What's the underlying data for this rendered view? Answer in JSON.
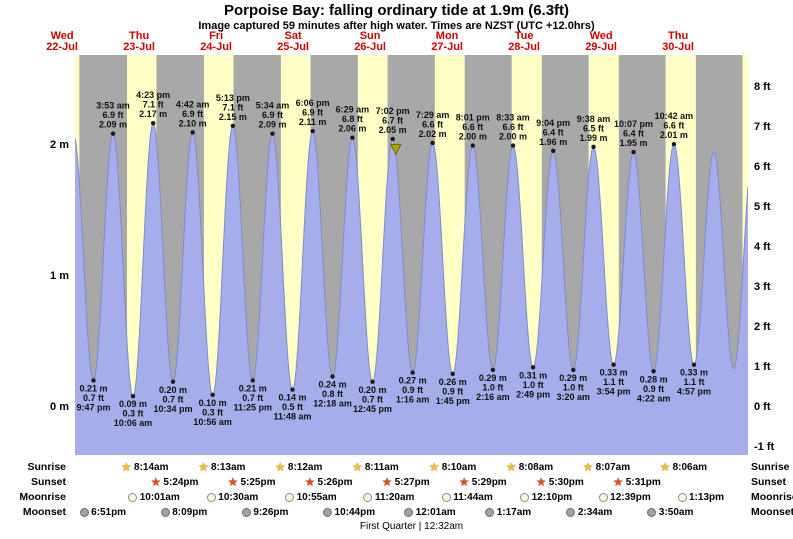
{
  "header": {
    "title": "Porpoise Bay: falling ordinary tide at 1.9m (6.3ft)",
    "subtitle": "Image captured 59 minutes after high water. Times are NZST (UTC +12.0hrs)"
  },
  "colors": {
    "night_bg": "#a8a8a8",
    "day_band": "#ffffc6",
    "tide_fill": "#a5aeea",
    "tide_edge": "#7f8ad0",
    "day_label": "#cc0000",
    "marker_fill": "#b0a000",
    "marker_edge": "#706400",
    "sunrise_star": "#f0c030",
    "sunset_star": "#dd4f1e",
    "moonrise_fill": "#fffbdc",
    "moonrise_edge": "#8a8a8a",
    "moonset_fill": "#a2a2a2",
    "moonset_edge": "#6e6e6e"
  },
  "chart_data": {
    "type": "area",
    "title": "Porpoise Bay: falling ordinary tide at 1.9m (6.3ft)",
    "subtitle": "Image captured 59 minutes after high water. Times are NZST (UTC +12.0hrs)",
    "timezone": "NZST (UTC +12.0hrs)",
    "days": [
      {
        "weekday": "Wed",
        "date": "22-Jul"
      },
      {
        "weekday": "Thu",
        "date": "23-Jul"
      },
      {
        "weekday": "Fri",
        "date": "24-Jul"
      },
      {
        "weekday": "Sat",
        "date": "25-Jul"
      },
      {
        "weekday": "Sun",
        "date": "26-Jul"
      },
      {
        "weekday": "Mon",
        "date": "27-Jul"
      },
      {
        "weekday": "Tue",
        "date": "28-Jul"
      },
      {
        "weekday": "Wed",
        "date": "29-Jul"
      },
      {
        "weekday": "Thu",
        "date": "30-Jul"
      }
    ],
    "y_axis": {
      "left_ticks": [
        {
          "label": "2 m",
          "m": 2
        },
        {
          "label": "1 m",
          "m": 1
        },
        {
          "label": "0 m",
          "m": 0
        }
      ],
      "right_ticks": [
        {
          "label": "8 ft",
          "ft": 8
        },
        {
          "label": "7 ft",
          "ft": 7
        },
        {
          "label": "6 ft",
          "ft": 6
        },
        {
          "label": "5 ft",
          "ft": 5
        },
        {
          "label": "4 ft",
          "ft": 4
        },
        {
          "label": "3 ft",
          "ft": 3
        },
        {
          "label": "2 ft",
          "ft": 2
        },
        {
          "label": "1 ft",
          "ft": 1
        },
        {
          "label": "0 ft",
          "ft": 0
        },
        {
          "label": "-1 ft",
          "ft": -1
        }
      ]
    },
    "tide_events": [
      {
        "t": 0.9076,
        "m": 0.21,
        "type": "low",
        "lines": [
          "0.21 m",
          "0.7 ft",
          "9:47 pm"
        ]
      },
      {
        "t": 1.1618,
        "m": 2.09,
        "type": "high",
        "lines": [
          "3:53 am",
          "6.9 ft",
          "2.09 m"
        ]
      },
      {
        "t": 1.4208,
        "m": 0.09,
        "type": "low",
        "lines": [
          "0.09 m",
          "0.3 ft",
          "10:06 am"
        ]
      },
      {
        "t": 1.6826,
        "m": 2.17,
        "type": "high",
        "lines": [
          "4:23 pm",
          "7.1 ft",
          "2.17 m"
        ]
      },
      {
        "t": 1.9403,
        "m": 0.2,
        "type": "low",
        "lines": [
          "0.20 m",
          "0.7 ft",
          "10:34 pm"
        ]
      },
      {
        "t": 2.1958,
        "m": 2.1,
        "type": "high",
        "lines": [
          "4:42 am",
          "6.9 ft",
          "2.10 m"
        ]
      },
      {
        "t": 2.4556,
        "m": 0.1,
        "type": "low",
        "lines": [
          "0.10 m",
          "0.3 ft",
          "10:56 am"
        ]
      },
      {
        "t": 2.7174,
        "m": 2.15,
        "type": "high",
        "lines": [
          "5:13 pm",
          "7.1 ft",
          "2.15 m"
        ]
      },
      {
        "t": 2.9757,
        "m": 0.21,
        "type": "low",
        "lines": [
          "0.21 m",
          "0.7 ft",
          "11:25 pm"
        ]
      },
      {
        "t": 3.2319,
        "m": 2.09,
        "type": "high",
        "lines": [
          "5:34 am",
          "6.9 ft",
          "2.09 m"
        ]
      },
      {
        "t": 3.4917,
        "m": 0.14,
        "type": "low",
        "lines": [
          "0.14 m",
          "0.5 ft",
          "11:48 am"
        ]
      },
      {
        "t": 3.7542,
        "m": 2.11,
        "type": "high",
        "lines": [
          "6:06 pm",
          "6.9 ft",
          "2.11 m"
        ]
      },
      {
        "t": 4.0125,
        "m": 0.24,
        "type": "low",
        "lines": [
          "0.24 m",
          "0.8 ft",
          "12:18 am"
        ]
      },
      {
        "t": 4.2701,
        "m": 2.06,
        "type": "high",
        "lines": [
          "6:29 am",
          "6.8 ft",
          "2.06 m"
        ]
      },
      {
        "t": 4.5313,
        "m": 0.2,
        "type": "low",
        "lines": [
          "0.20 m",
          "0.7 ft",
          "12:45 pm"
        ]
      },
      {
        "t": 4.7931,
        "m": 2.05,
        "type": "high",
        "lines": [
          "7:02 pm",
          "6.7 ft",
          "2.05 m"
        ]
      },
      {
        "t": 5.0528,
        "m": 0.27,
        "type": "low",
        "lines": [
          "0.27 m",
          "0.9 ft",
          "1:16 am"
        ]
      },
      {
        "t": 5.3118,
        "m": 2.02,
        "type": "high",
        "lines": [
          "7:29 am",
          "6.6 ft",
          "2.02 m"
        ]
      },
      {
        "t": 5.5729,
        "m": 0.26,
        "type": "low",
        "lines": [
          "0.26 m",
          "0.9 ft",
          "1:45 pm"
        ]
      },
      {
        "t": 5.834,
        "m": 2.0,
        "type": "high",
        "lines": [
          "8:01 pm",
          "6.6 ft",
          "2.00 m"
        ]
      },
      {
        "t": 6.0944,
        "m": 0.29,
        "type": "low",
        "lines": [
          "0.29 m",
          "1.0 ft",
          "2:16 am"
        ]
      },
      {
        "t": 6.3563,
        "m": 2.0,
        "type": "high",
        "lines": [
          "8:33 am",
          "6.6 ft",
          "2.00 m"
        ]
      },
      {
        "t": 6.6174,
        "m": 0.31,
        "type": "low",
        "lines": [
          "0.31 m",
          "1.0 ft",
          "2:49 pm"
        ]
      },
      {
        "t": 6.8778,
        "m": 1.96,
        "type": "high",
        "lines": [
          "9:04 pm",
          "6.4 ft",
          "1.96 m"
        ]
      },
      {
        "t": 7.1389,
        "m": 0.29,
        "type": "low",
        "lines": [
          "0.29 m",
          "1.0 ft",
          "3:20 am"
        ]
      },
      {
        "t": 7.4014,
        "m": 1.99,
        "type": "high",
        "lines": [
          "9:38 am",
          "6.5 ft",
          "1.99 m"
        ]
      },
      {
        "t": 7.6625,
        "m": 0.33,
        "type": "low",
        "lines": [
          "0.33 m",
          "1.1 ft",
          "3:54 pm"
        ]
      },
      {
        "t": 7.9215,
        "m": 1.95,
        "type": "high",
        "lines": [
          "10:07 pm",
          "6.4 ft",
          "1.95 m"
        ]
      },
      {
        "t": 8.1819,
        "m": 0.28,
        "type": "low",
        "lines": [
          "0.28 m",
          "0.9 ft",
          "4:22 am"
        ]
      },
      {
        "t": 8.4458,
        "m": 2.01,
        "type": "high",
        "lines": [
          "10:42 am",
          "6.6 ft",
          "2.01 m"
        ]
      },
      {
        "t": 8.7063,
        "m": 0.33,
        "type": "low",
        "lines": [
          "0.33 m",
          "1.1 ft",
          "4:57 pm"
        ]
      }
    ],
    "curve_anchors": [
      {
        "t": 0.649,
        "m": 2.08
      },
      {
        "t": 8.964,
        "m": 1.95
      },
      {
        "t": 9.222,
        "m": 0.3
      },
      {
        "t": 9.48,
        "m": 2.0
      }
    ],
    "daylight_bands": [
      {
        "from": 0.6,
        "to": 0.7243
      },
      {
        "from": 1.3431,
        "to": 1.725
      },
      {
        "from": 2.3424,
        "to": 2.7257
      },
      {
        "from": 3.3417,
        "to": 3.7264
      },
      {
        "from": 4.341,
        "to": 4.7271
      },
      {
        "from": 5.3403,
        "to": 5.7285
      },
      {
        "from": 6.3389,
        "to": 6.7292
      },
      {
        "from": 7.3382,
        "to": 7.7299
      },
      {
        "from": 8.3375,
        "to": 8.7304
      },
      {
        "from": 9.3368,
        "to": 9.45
      }
    ],
    "current_marker": {
      "t": 4.834,
      "m": 1.94
    }
  },
  "astro": {
    "rows": [
      {
        "name": "Sunrise",
        "icon": "sunrise-star-icon",
        "entries": [
          {
            "time": "8:14am",
            "t": 1.3431
          },
          {
            "time": "8:13am",
            "t": 2.3424
          },
          {
            "time": "8:12am",
            "t": 3.3417
          },
          {
            "time": "8:11am",
            "t": 4.341
          },
          {
            "time": "8:10am",
            "t": 5.3403
          },
          {
            "time": "8:08am",
            "t": 6.3389
          },
          {
            "time": "8:07am",
            "t": 7.3382
          },
          {
            "time": "8:06am",
            "t": 8.3375
          }
        ]
      },
      {
        "name": "Sunset",
        "icon": "sunset-star-icon",
        "entries": [
          {
            "time": "5:24pm",
            "t": 1.725
          },
          {
            "time": "5:25pm",
            "t": 2.7257
          },
          {
            "time": "5:26pm",
            "t": 3.7264
          },
          {
            "time": "5:27pm",
            "t": 4.7271
          },
          {
            "time": "5:29pm",
            "t": 5.7285
          },
          {
            "time": "5:30pm",
            "t": 6.7292
          },
          {
            "time": "5:31pm",
            "t": 7.7299
          }
        ]
      },
      {
        "name": "Moonrise",
        "icon": "moonrise-circle-icon",
        "entries": [
          {
            "time": "10:01am",
            "t": 1.4174
          },
          {
            "time": "10:30am",
            "t": 2.4375
          },
          {
            "time": "10:55am",
            "t": 3.4549
          },
          {
            "time": "11:20am",
            "t": 4.4722
          },
          {
            "time": "11:44am",
            "t": 5.4889
          },
          {
            "time": "12:10pm",
            "t": 6.5069
          },
          {
            "time": "12:39pm",
            "t": 7.5271
          },
          {
            "time": "1:13pm",
            "t": 8.5507
          }
        ]
      },
      {
        "name": "Moonset",
        "icon": "moonset-circle-icon",
        "entries": [
          {
            "time": "6:51pm",
            "t": 0.7854
          },
          {
            "time": "8:09pm",
            "t": 1.8396
          },
          {
            "time": "9:26pm",
            "t": 2.8931
          },
          {
            "time": "10:44pm",
            "t": 3.9472
          },
          {
            "time": "12:01am",
            "t": 5.0007
          },
          {
            "time": "1:17am",
            "t": 6.0535
          },
          {
            "time": "2:34am",
            "t": 7.1069
          },
          {
            "time": "3:50am",
            "t": 8.1597
          }
        ]
      }
    ],
    "footer": "First Quarter | 12:32am"
  }
}
